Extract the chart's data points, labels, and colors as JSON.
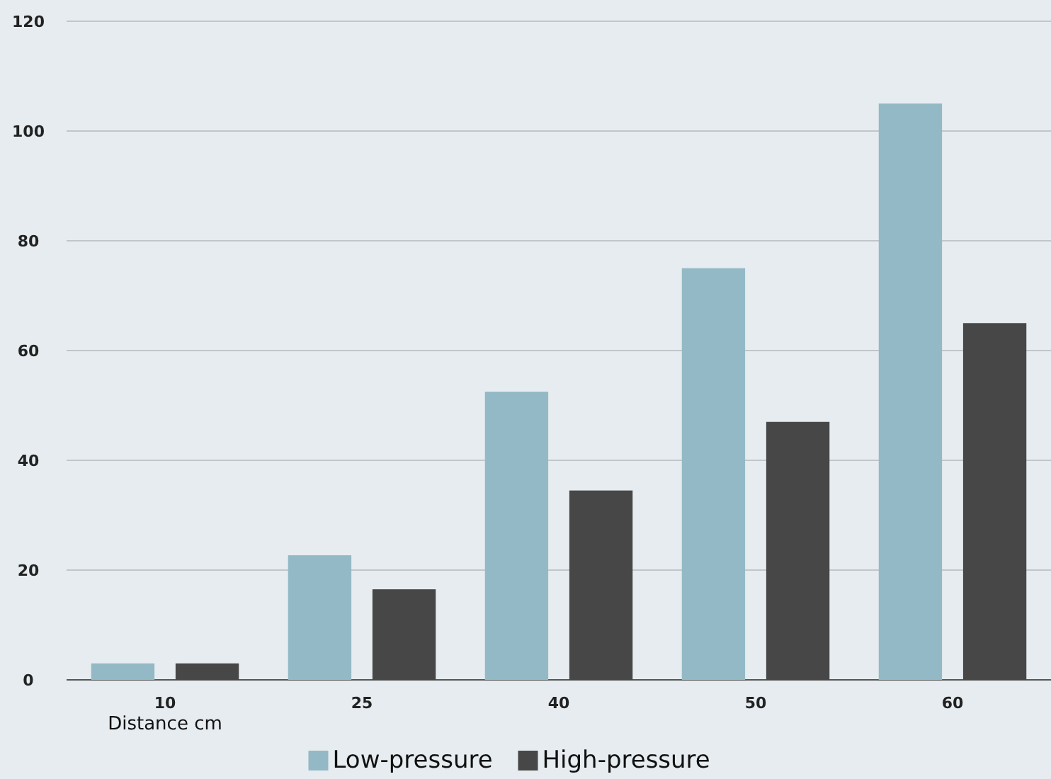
{
  "chart_data": {
    "type": "bar",
    "xlabel": "Distance cm",
    "categories": [
      "10",
      "25",
      "40",
      "50",
      "60"
    ],
    "series": [
      {
        "name": "Low-pressure",
        "color": "#93b9c6",
        "values": [
          3,
          22.7,
          52.5,
          75,
          105
        ]
      },
      {
        "name": "High-pressure",
        "color": "#474747",
        "values": [
          3,
          16.5,
          34.5,
          47,
          65
        ]
      }
    ],
    "ylim": [
      0,
      120
    ],
    "yticks": [
      0,
      20,
      40,
      60,
      80,
      100,
      120
    ],
    "grid": "y",
    "legend": "bottom"
  }
}
